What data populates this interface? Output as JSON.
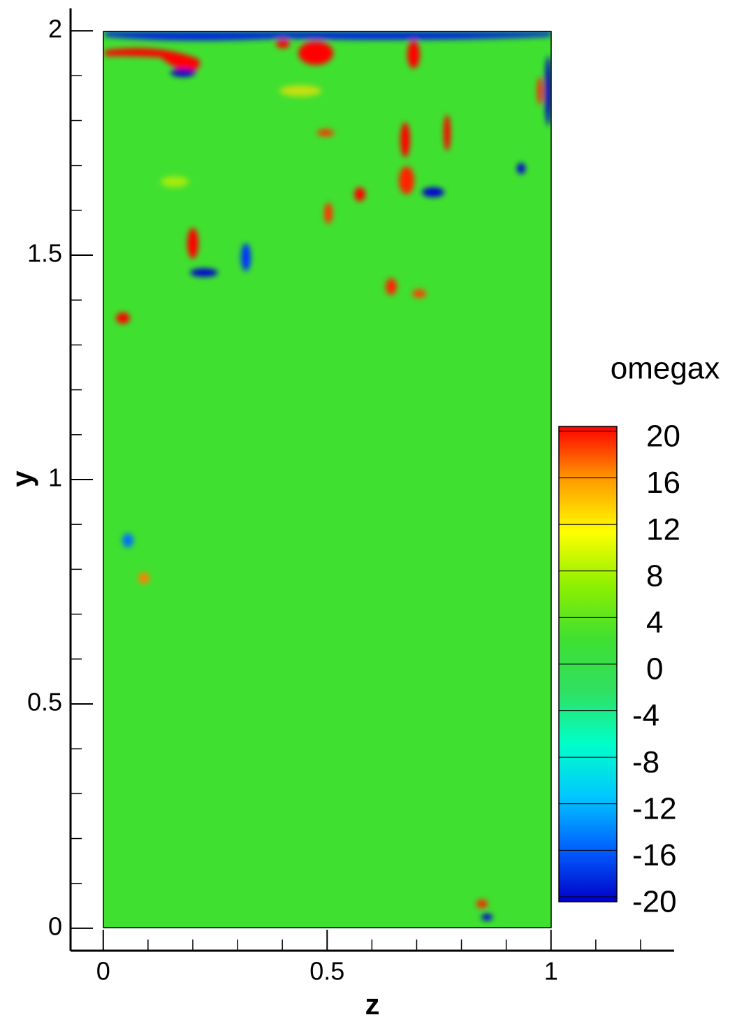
{
  "chart_data": {
    "type": "contour",
    "x_label": "z",
    "y_label": "y",
    "colorbar_title": "omegax",
    "xlim": [
      -0.073,
      1.275
    ],
    "ylim": [
      -0.05,
      2.05
    ],
    "xticks": [
      0,
      0.5,
      1
    ],
    "yticks": [
      0,
      0.5,
      1,
      1.5,
      2
    ],
    "clim": [
      -20,
      20
    ],
    "cticks": [
      20,
      16,
      12,
      8,
      4,
      0,
      -4,
      -8,
      -12,
      -16,
      -20
    ],
    "colormap": [
      "#0000c8",
      "#0060ff",
      "#00c8ff",
      "#00ffc8",
      "#30e060",
      "#40e030",
      "#8ef000",
      "#ffff00",
      "#ff9a00",
      "#ff0000"
    ]
  }
}
